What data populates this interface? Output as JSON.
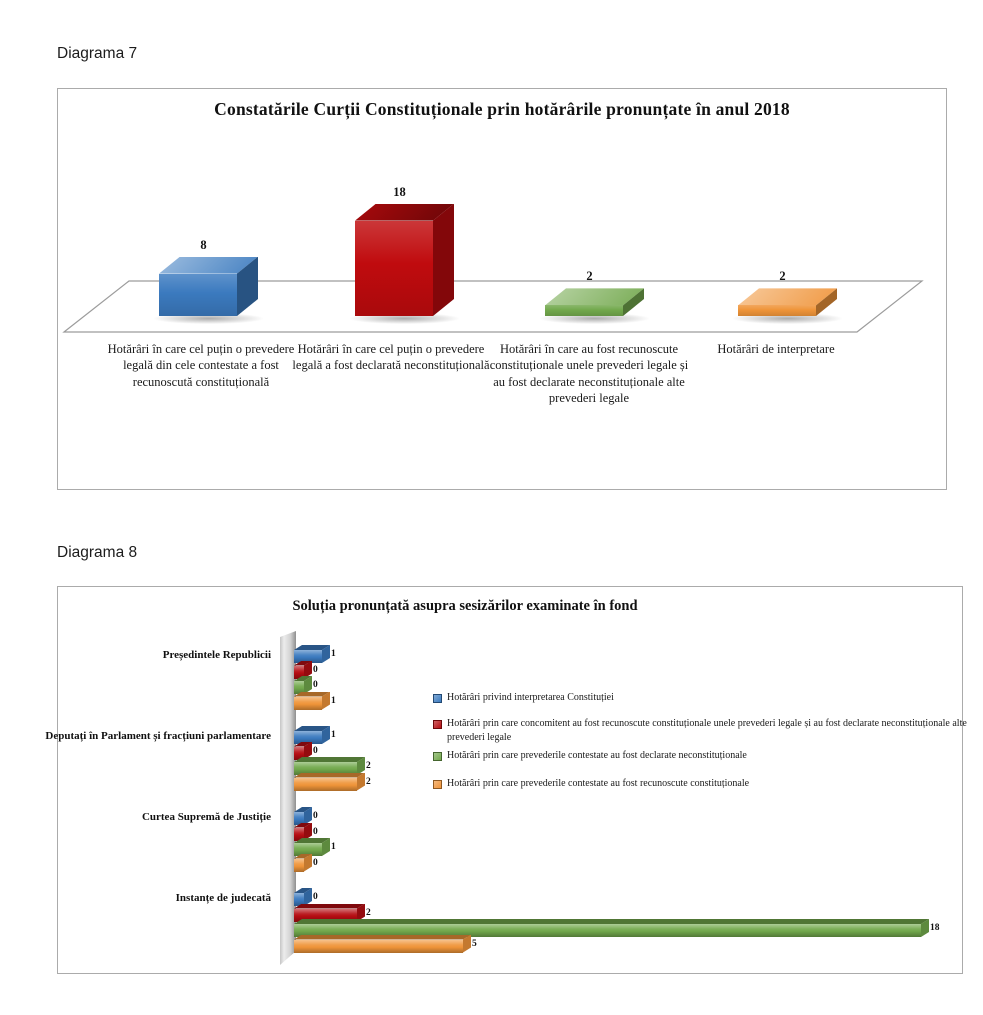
{
  "diagrams": [
    {
      "label": "Diagrama 7"
    },
    {
      "label": "Diagrama 8"
    }
  ],
  "chart_data": [
    {
      "id": "diagrama7",
      "type": "bar",
      "title": "Constatările Curții Constituționale prin hotărârile pronunțate în anul 2018",
      "categories": [
        "Hotărâri în care cel puțin o prevedere legală din cele contestate a fost recunoscută constituțională",
        "Hotărâri în care cel puțin o prevedere legală a fost declarată neconstituțională",
        "Hotărâri în care au fost recunoscute constituționale unele prevederi legale și au fost declarate neconstituționale alte prevederi legale",
        "Hotărâri de interpretare"
      ],
      "values": [
        8,
        18,
        2,
        2
      ],
      "colors": [
        "#3b7abf",
        "#c00b0e",
        "#72a84c",
        "#ef9439"
      ],
      "ylim": [
        0,
        18
      ],
      "grid": false,
      "legend": false,
      "style": "3d-column"
    },
    {
      "id": "diagrama8",
      "type": "bar-horizontal",
      "title": "Soluția pronunțată asupra sesizărilor examinate în fond",
      "categories": [
        "Președintele Republicii",
        "Deputați în Parlament și fracțiuni parlamentare",
        "Curtea Supremă de Justiție",
        "Instanțe de judecată"
      ],
      "series": [
        {
          "name": "Hotărâri privind interpretarea Constituției",
          "color": "#3b7abf",
          "values": [
            1,
            1,
            0,
            0
          ]
        },
        {
          "name": "Hotărâri prin care concomitent au fost recunoscute constituționale unele prevederi legale și au fost declarate neconstituționale alte prevederi legale",
          "color": "#b50d12",
          "values": [
            0,
            0,
            0,
            2
          ]
        },
        {
          "name": "Hotărâri prin care prevederile contestate au fost declarate neconstituționale",
          "color": "#72a84c",
          "values": [
            0,
            2,
            1,
            18
          ]
        },
        {
          "name": "Hotărâri prin care prevederile contestate au fost recunoscute constituționale",
          "color": "#ef9439",
          "values": [
            1,
            2,
            0,
            5
          ]
        }
      ],
      "xlim": [
        0,
        18
      ],
      "grid": false,
      "legend_position": "right",
      "style": "3d-bar"
    }
  ]
}
